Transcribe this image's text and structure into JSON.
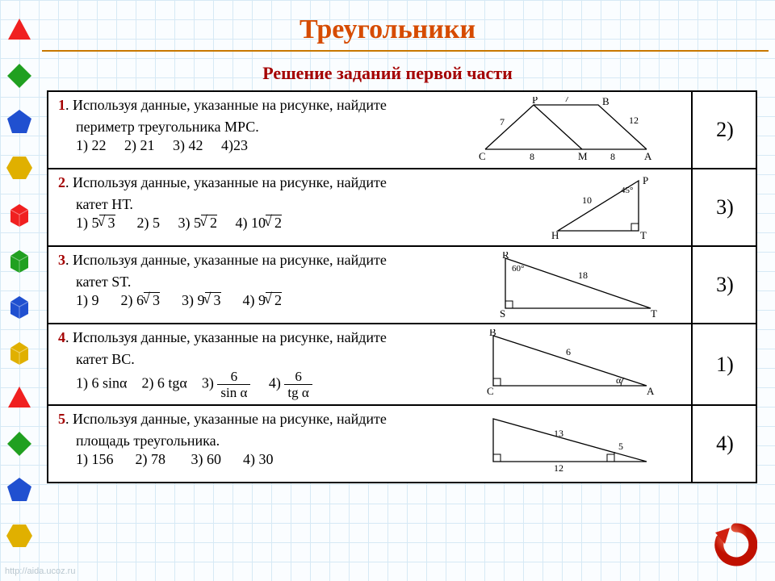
{
  "title": "Треугольники",
  "subtitle": "Решение заданий первой части",
  "title_color": "#d64b00",
  "subtitle_color": "#a40000",
  "line_color": "#c87800",
  "grid_color": "#d6e9f5",
  "table_border_color": "#000000",
  "sidebar_shapes": [
    {
      "name": "triangle",
      "fill": "#f02020"
    },
    {
      "name": "diamond",
      "fill": "#20a020"
    },
    {
      "name": "pentagon",
      "fill": "#2050d0"
    },
    {
      "name": "hexagon",
      "fill": "#e0b000"
    },
    {
      "name": "cube",
      "fill": "#f02020"
    },
    {
      "name": "cube",
      "fill": "#20a020"
    },
    {
      "name": "cube",
      "fill": "#2050d0"
    },
    {
      "name": "cube",
      "fill": "#e0b000"
    },
    {
      "name": "triangle",
      "fill": "#f02020"
    },
    {
      "name": "diamond",
      "fill": "#20a020"
    },
    {
      "name": "pentagon",
      "fill": "#2050d0"
    },
    {
      "name": "hexagon",
      "fill": "#e0b000"
    }
  ],
  "tasks": [
    {
      "num": "1",
      "text": "Используя данные, указанные на рисунке, найдите",
      "second": "периметр треугольника МРС.",
      "options": "1) 22     2) 21     3) 42     4)23",
      "answer": "2)",
      "figure": {
        "type": "t1",
        "labels": {
          "P": "P",
          "B": "B",
          "C": "C",
          "M": "M",
          "A": "A",
          "s7a": "7",
          "s7b": "7",
          "s12": "12",
          "s8a": "8",
          "s8b": "8"
        }
      }
    },
    {
      "num": "2",
      "text": "Используя данные, указанные на рисунке, найдите",
      "second": "катет НТ.",
      "options_prefix": "1) ",
      "opt1": "5√3",
      "opt2": "2) 5",
      "opt3": "3) ",
      "opt3v": "5√2",
      "opt4": "4) ",
      "opt4v": "10√2",
      "answer": "3)",
      "figure": {
        "type": "t2",
        "labels": {
          "P": "P",
          "H": "H",
          "T": "T",
          "hyp": "10",
          "ang": "45°"
        }
      }
    },
    {
      "num": "3",
      "text": "Используя данные, указанные на рисунке, найдите",
      "second": "катет  ST.",
      "opt1": "1) 9",
      "opt2": "2) ",
      "opt2v": "6√3",
      "opt3": "3) ",
      "opt3v": "9√3",
      "opt4": "4) ",
      "opt4v": "9√2",
      "answer": "3)",
      "figure": {
        "type": "t3",
        "labels": {
          "R": "R",
          "S": "S",
          "T": "T",
          "hyp": "18",
          "ang": "60°"
        }
      }
    },
    {
      "num": "4",
      "text": "Используя данные, указанные на рисунке, найдите",
      "second": "катет  ВС.",
      "opt1": "1) 6 sinα",
      "opt2": "2) 6 tgα",
      "opt3": "3) ",
      "opt4": "4) ",
      "frac3": {
        "n": "6",
        "d": "sin α"
      },
      "frac4": {
        "n": "6",
        "d": "tg α"
      },
      "answer": "1)",
      "figure": {
        "type": "t4",
        "labels": {
          "B": "B",
          "C": "C",
          "A": "A",
          "hyp": "6",
          "ang": "α"
        }
      }
    },
    {
      "num": "5",
      "text": "Используя данные, указанные на рисунке, найдите",
      "second": "площадь треугольника.",
      "options": "1) 156      2) 78       3) 60      4) 30",
      "answer": "4)",
      "figure": {
        "type": "t5",
        "labels": {
          "a": "13",
          "b": "12",
          "c": "5"
        }
      }
    }
  ],
  "back_button_color": "#e03020",
  "watermark": "http://aida.ucoz.ru"
}
